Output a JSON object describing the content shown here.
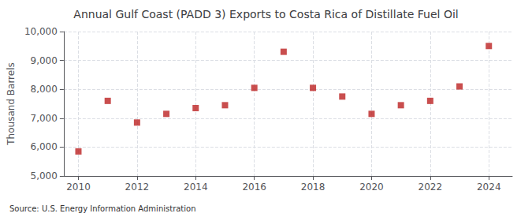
{
  "chart_data": {
    "type": "scatter",
    "title": "Annual Gulf Coast (PADD 3) Exports to Costa Rica of Distillate Fuel Oil",
    "ylabel": "Thousand Barrels",
    "annotation": "Source: U.S. Energy Information Administration",
    "x": [
      2010,
      2011,
      2012,
      2013,
      2014,
      2015,
      2016,
      2017,
      2018,
      2019,
      2020,
      2021,
      2022,
      2023,
      2024
    ],
    "values": [
      5850,
      7600,
      6850,
      7150,
      7350,
      7450,
      8050,
      9300,
      8050,
      7750,
      7150,
      7450,
      7600,
      8100,
      9500
    ],
    "xlim": [
      2009.5,
      2024.8
    ],
    "xticks": [
      2010,
      2012,
      2014,
      2016,
      2018,
      2020,
      2022,
      2024
    ],
    "ylim": [
      5000,
      10000
    ],
    "yticks": [
      {
        "value": 5000,
        "label": "5,000"
      },
      {
        "value": 6000,
        "label": "6,000"
      },
      {
        "value": 7000,
        "label": "7,000"
      },
      {
        "value": 8000,
        "label": "8,000"
      },
      {
        "value": 9000,
        "label": "9,000"
      },
      {
        "value": 10000,
        "label": "10,000"
      }
    ],
    "color": "#bb2222",
    "marker": "square",
    "grid": true
  }
}
